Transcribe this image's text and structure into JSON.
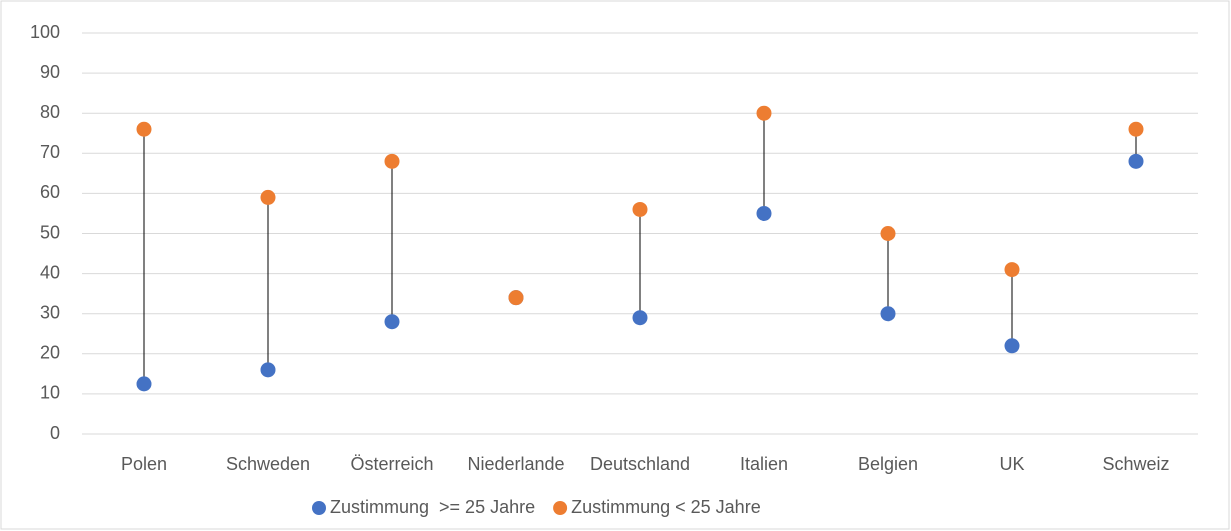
{
  "chart_data": {
    "type": "dumbbell",
    "categories": [
      "Polen",
      "Schweden",
      "Österreich",
      "Niederlande",
      "Deutschland",
      "Italien",
      "Belgien",
      "UK",
      "Schweiz"
    ],
    "series": [
      {
        "name": "Zustimmung  >= 25 Jahre",
        "color": "#4472c4",
        "values": [
          12.5,
          16,
          28,
          34,
          29,
          55,
          30,
          22,
          68
        ]
      },
      {
        "name": "Zustimmung < 25 Jahre",
        "color": "#ed7d31",
        "values": [
          76,
          59,
          68,
          34,
          56,
          80,
          50,
          41,
          76
        ]
      }
    ],
    "ylim": [
      0,
      100
    ],
    "yticks": [
      0,
      10,
      20,
      30,
      40,
      50,
      60,
      70,
      80,
      90,
      100
    ],
    "grid": true,
    "legend": "bottom"
  }
}
